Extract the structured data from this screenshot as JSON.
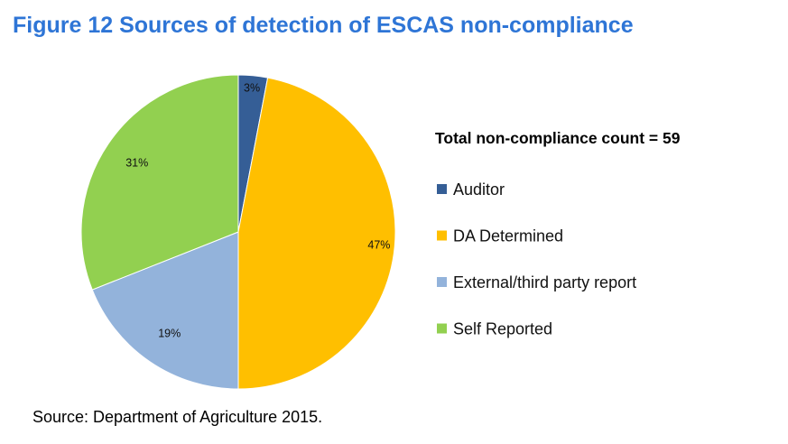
{
  "title": "Figure 12 Sources of detection of ESCAS non-compliance",
  "source": "Source: Department of Agriculture 2015.",
  "chart_data": {
    "type": "pie",
    "title": "Figure 12 Sources of detection of ESCAS non-compliance",
    "legend_title": "Total non-compliance count = 59",
    "legend_position": "right",
    "categories": [
      "Auditor",
      "DA Determined",
      "External/third party report",
      "Self Reported"
    ],
    "values": [
      3,
      47,
      19,
      31
    ],
    "labels": [
      "3%",
      "47%",
      "19%",
      "31%"
    ],
    "colors": [
      "#355e96",
      "#ffbf00",
      "#93b3db",
      "#92d050"
    ]
  }
}
